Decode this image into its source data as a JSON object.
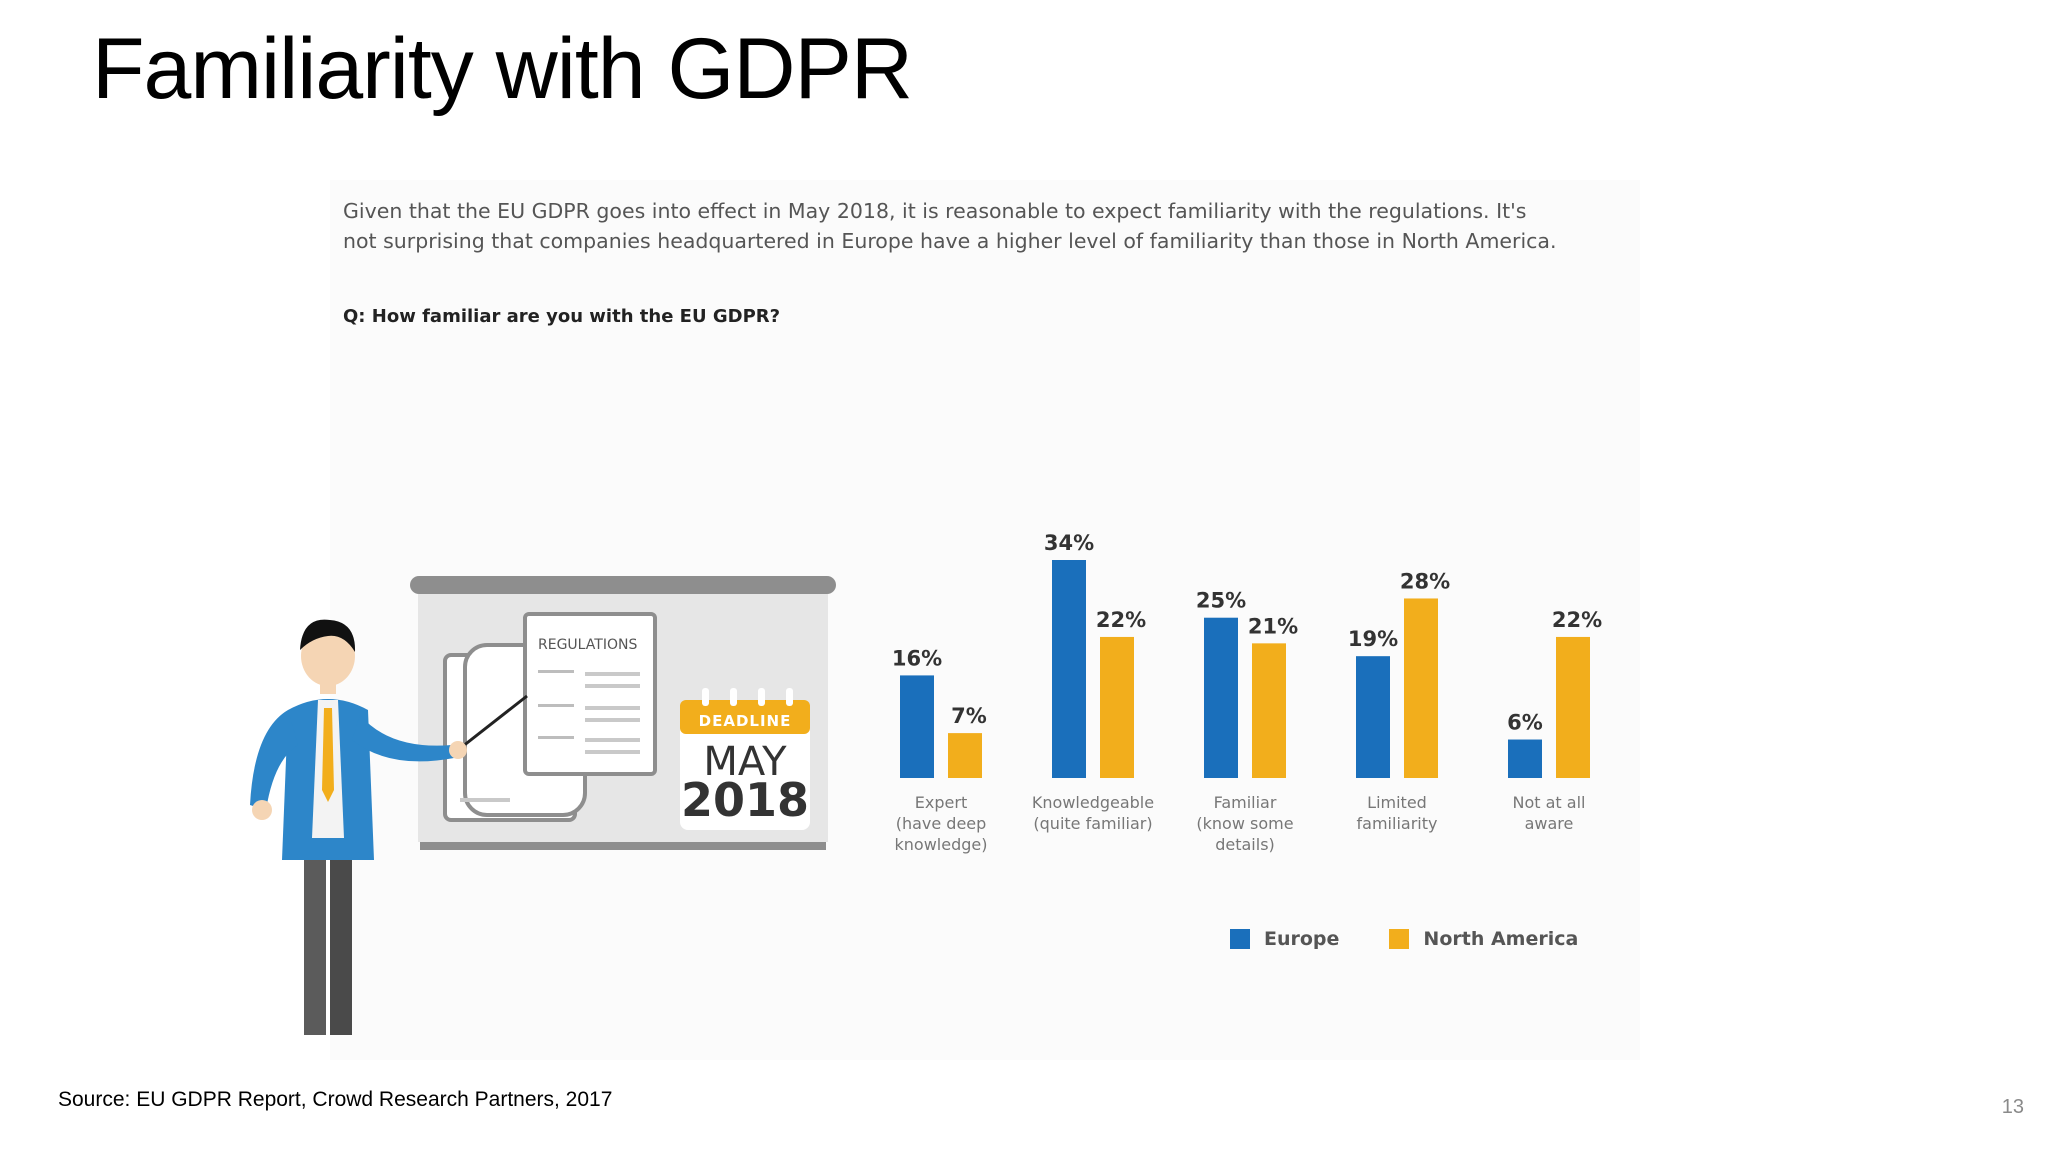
{
  "slide": {
    "title": "Familiarity with GDPR",
    "intro_line1": "Given that the EU GDPR goes into effect in May 2018, it is reasonable to expect familiarity with the regulations. It's",
    "intro_line2": "not surprising that companies headquartered in Europe have a higher level of familiarity than those in North America.",
    "question": "Q: How familiar are you with the EU GDPR?",
    "source": "Source: EU GDPR Report, Crowd Research Partners, 2017",
    "page_number": "13"
  },
  "illustration": {
    "board_heading": "REGULATIONS",
    "calendar_label": "DEADLINE",
    "calendar_month": "MAY",
    "calendar_year": "2018"
  },
  "colors": {
    "europe": "#1a6fbb",
    "north_america": "#f2ae1c",
    "label_text": "#333333",
    "category_text": "#777777"
  },
  "chart_data": {
    "type": "bar",
    "categories": [
      [
        "Expert",
        "(have deep",
        "knowledge)"
      ],
      [
        "Knowledgeable",
        "(quite familiar)"
      ],
      [
        "Familiar",
        "(know some",
        "details)"
      ],
      [
        "Limited",
        "familiarity"
      ],
      [
        "Not at all",
        "aware"
      ]
    ],
    "series": [
      {
        "name": "Europe",
        "values": [
          16,
          34,
          25,
          19,
          6
        ],
        "labels": [
          "16%",
          "34%",
          "25%",
          "19%",
          "6%"
        ]
      },
      {
        "name": "North America",
        "values": [
          7,
          22,
          21,
          28,
          22
        ],
        "labels": [
          "7%",
          "22%",
          "21%",
          "28%",
          "22%"
        ]
      }
    ],
    "legend_position": "bottom-right",
    "grid": false,
    "ylim": [
      0,
      34
    ]
  }
}
